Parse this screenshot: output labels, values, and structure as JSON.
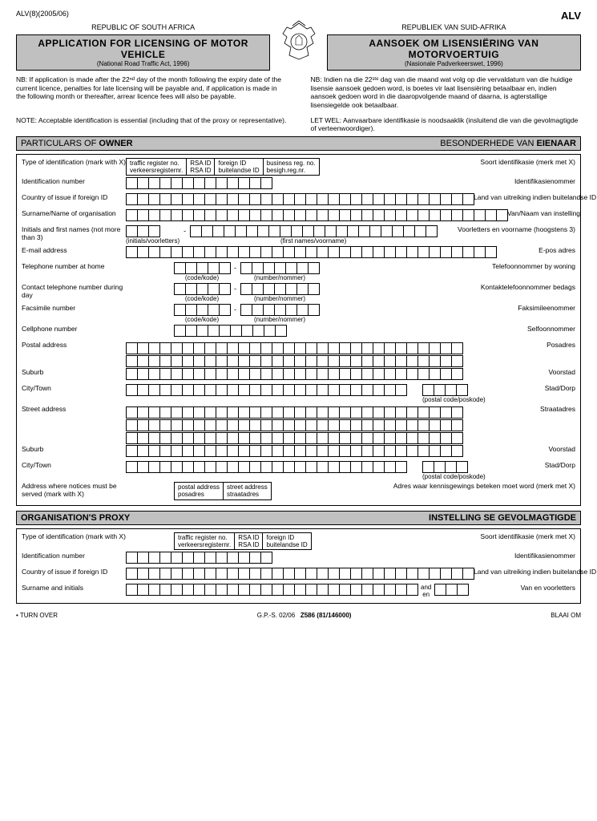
{
  "header": {
    "form_code_left": "ALV(8)(2005/06)",
    "form_code_right": "ALV",
    "republic_left": "REPUBLIC OF SOUTH AFRICA",
    "republic_right": "REPUBLIEK VAN SUID-AFRIKA",
    "title_left_main": "APPLICATION FOR LICENSING OF MOTOR VEHICLE",
    "title_left_sub": "(National Road Traffic Act, 1996)",
    "title_right_main": "AANSOEK OM LISENSIËRING VAN MOTORVOERTUIG",
    "title_right_sub": "(Nasionale Padverkeerswet, 1996)",
    "nb_left": "NB: If application is made after the 22ⁿᵈ day of the month following the expiry date of the current licence, penalties for late licensing will be payable and, if application is made in the following month or thereafter, arrear licence fees will also be payable.",
    "nb_right": "NB: Indien na die 22ˢᵗᵉ dag van die maand wat volg op die vervaldatum van die huidige lisensie aansoek gedoen word, is boetes vir laat lisensiëring betaalbaar en, indien aansoek gedoen word in die daaropvolgende maand of daarna, is agterstallige lisensiegelde ook betaalbaar.",
    "note_left": "NOTE: Acceptable identification is essential (including that of the proxy or representative).",
    "note_right": "LET WEL: Aanvaarbare identifikasie is noodsaaklik (insluitend die van die gevolmagtigde of verteenwoordiger)."
  },
  "sections": {
    "owner": {
      "title_left": "PARTICULARS OF ",
      "title_left_bold": "OWNER",
      "title_right": "BESONDERHEDE VAN ",
      "title_right_bold": "EIENAAR"
    },
    "proxy": {
      "title_left_bold": "ORGANISATION'S PROXY",
      "title_right_bold": "INSTELLING SE GEVOLMAGTIGDE"
    }
  },
  "owner": {
    "type_id_l": "Type of identification (mark with X)",
    "type_id_r": "Soort identifikasie (merk met X)",
    "opts": {
      "traffic1": "traffic register no.",
      "traffic2": "verkeersregisternr.",
      "rsa1": "RSA ID",
      "rsa2": "RSA ID",
      "foreign1": "foreign ID",
      "foreign2": "buitelandse ID",
      "business1": "business reg. no.",
      "business2": "besigh.reg.nr."
    },
    "id_num_l": "Identification number",
    "id_num_r": "Identifikasienommer",
    "country_l": "Country of issue if foreign ID",
    "country_r": "Land van uitreiking indien buitelandse ID",
    "surname_l": "Surname/Name of organisation",
    "surname_r": "Van/Naam van instelling",
    "initials_l": "Initials and first names (not more than 3)",
    "initials_r": "Voorletters en voorname (hoogstens 3)",
    "initials_sub": "(initials/voorletters)",
    "firstnames_sub": "(first names/voorname)",
    "email_l": "E-mail address",
    "email_r": "E-pos adres",
    "tel_home_l": "Telephone number at home",
    "tel_home_r": "Telefoonnommer by woning",
    "code_sub": "(code/kode)",
    "number_sub": "(number/nommer)",
    "contact_l": "Contact telephone number during day",
    "contact_r": "Kontaktelefoonnommer bedags",
    "fax_l": "Facsimile number",
    "fax_r": "Faksimileenommer",
    "cell_l": "Cellphone number",
    "cell_r": "Selfoonnommer",
    "postal_l": "Postal address",
    "postal_r": "Posadres",
    "suburb_l": "Suburb",
    "suburb_r": "Voorstad",
    "city_l": "City/Town",
    "city_r": "Stad/Dorp",
    "postal_code_sub": "(postal code/poskode)",
    "street_l": "Street address",
    "street_r": "Straatadres",
    "notice_l": "Address where notices must be served (mark with X)",
    "notice_r": "Adres waar kennisgewings beteken moet word (merk met X)",
    "notice_opt1a": "postal address",
    "notice_opt1b": "posadres",
    "notice_opt2a": "street address",
    "notice_opt2b": "straatadres"
  },
  "proxy": {
    "type_id_l": "Type of identification (mark with X)",
    "type_id_r": "Soort identifikasie (merk met X)",
    "id_num_l": "Identification number",
    "id_num_r": "Identifikasienommer",
    "country_l": "Country of issue if foreign ID",
    "country_r": "Land van uitreiking indien buitelandse ID",
    "surname_l": "Surname and initials",
    "surname_r": "Van en voorletters",
    "and_l": "and",
    "and_r": "en"
  },
  "footer": {
    "left": "• TURN OVER",
    "mid1": "G.P.-S. 02/06",
    "mid2": "Z586 (81/146000)",
    "right": "BLAAI OM"
  },
  "layout": {
    "cell_counts": {
      "id": 13,
      "country": 31,
      "surname": 34,
      "initials": 3,
      "firstnames": 22,
      "email": 33,
      "code": 5,
      "number": 7,
      "cell": 10,
      "addr": 30,
      "city": 25,
      "pcode": 4,
      "proxy_sur": 26
    }
  }
}
